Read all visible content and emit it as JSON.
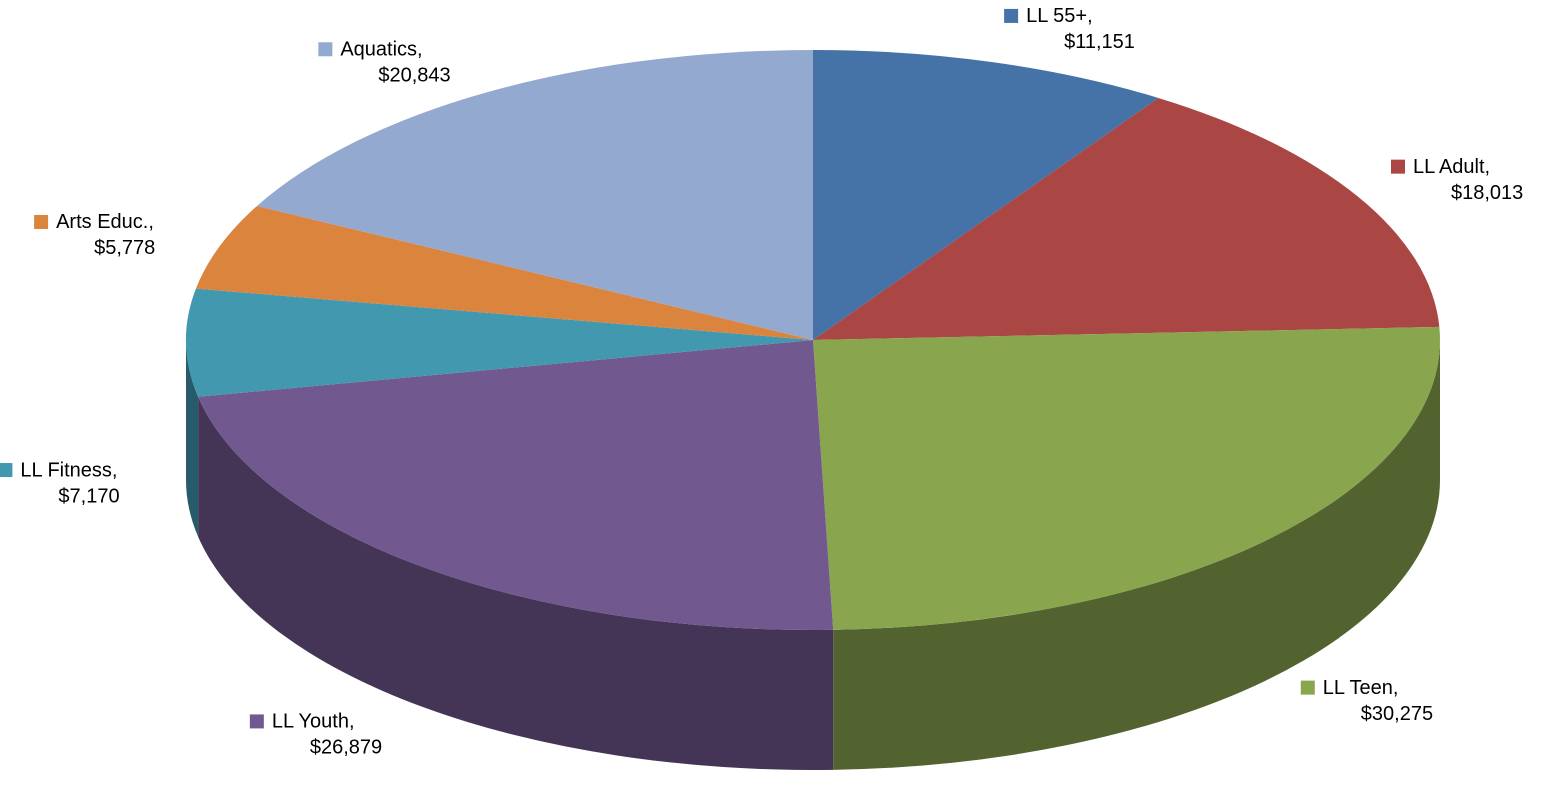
{
  "chart_data": {
    "type": "pie",
    "categories": [
      "LL 55+,",
      "LL Adult,",
      "LL Teen,",
      "LL Youth,",
      "LL Fitness,",
      "Arts Educ.,",
      "Aquatics,"
    ],
    "values": [
      11151,
      18013,
      30275,
      26879,
      7170,
      5778,
      20843
    ],
    "value_labels": [
      "$11,151",
      "$18,013",
      "$30,275",
      "$26,879",
      "$7,170",
      "$5,778",
      "$20,843"
    ],
    "colors": [
      "#4572a7",
      "#aa4643",
      "#89a54e",
      "#71588f",
      "#4198af",
      "#db843d",
      "#93a9cf"
    ],
    "three_d": true
  }
}
